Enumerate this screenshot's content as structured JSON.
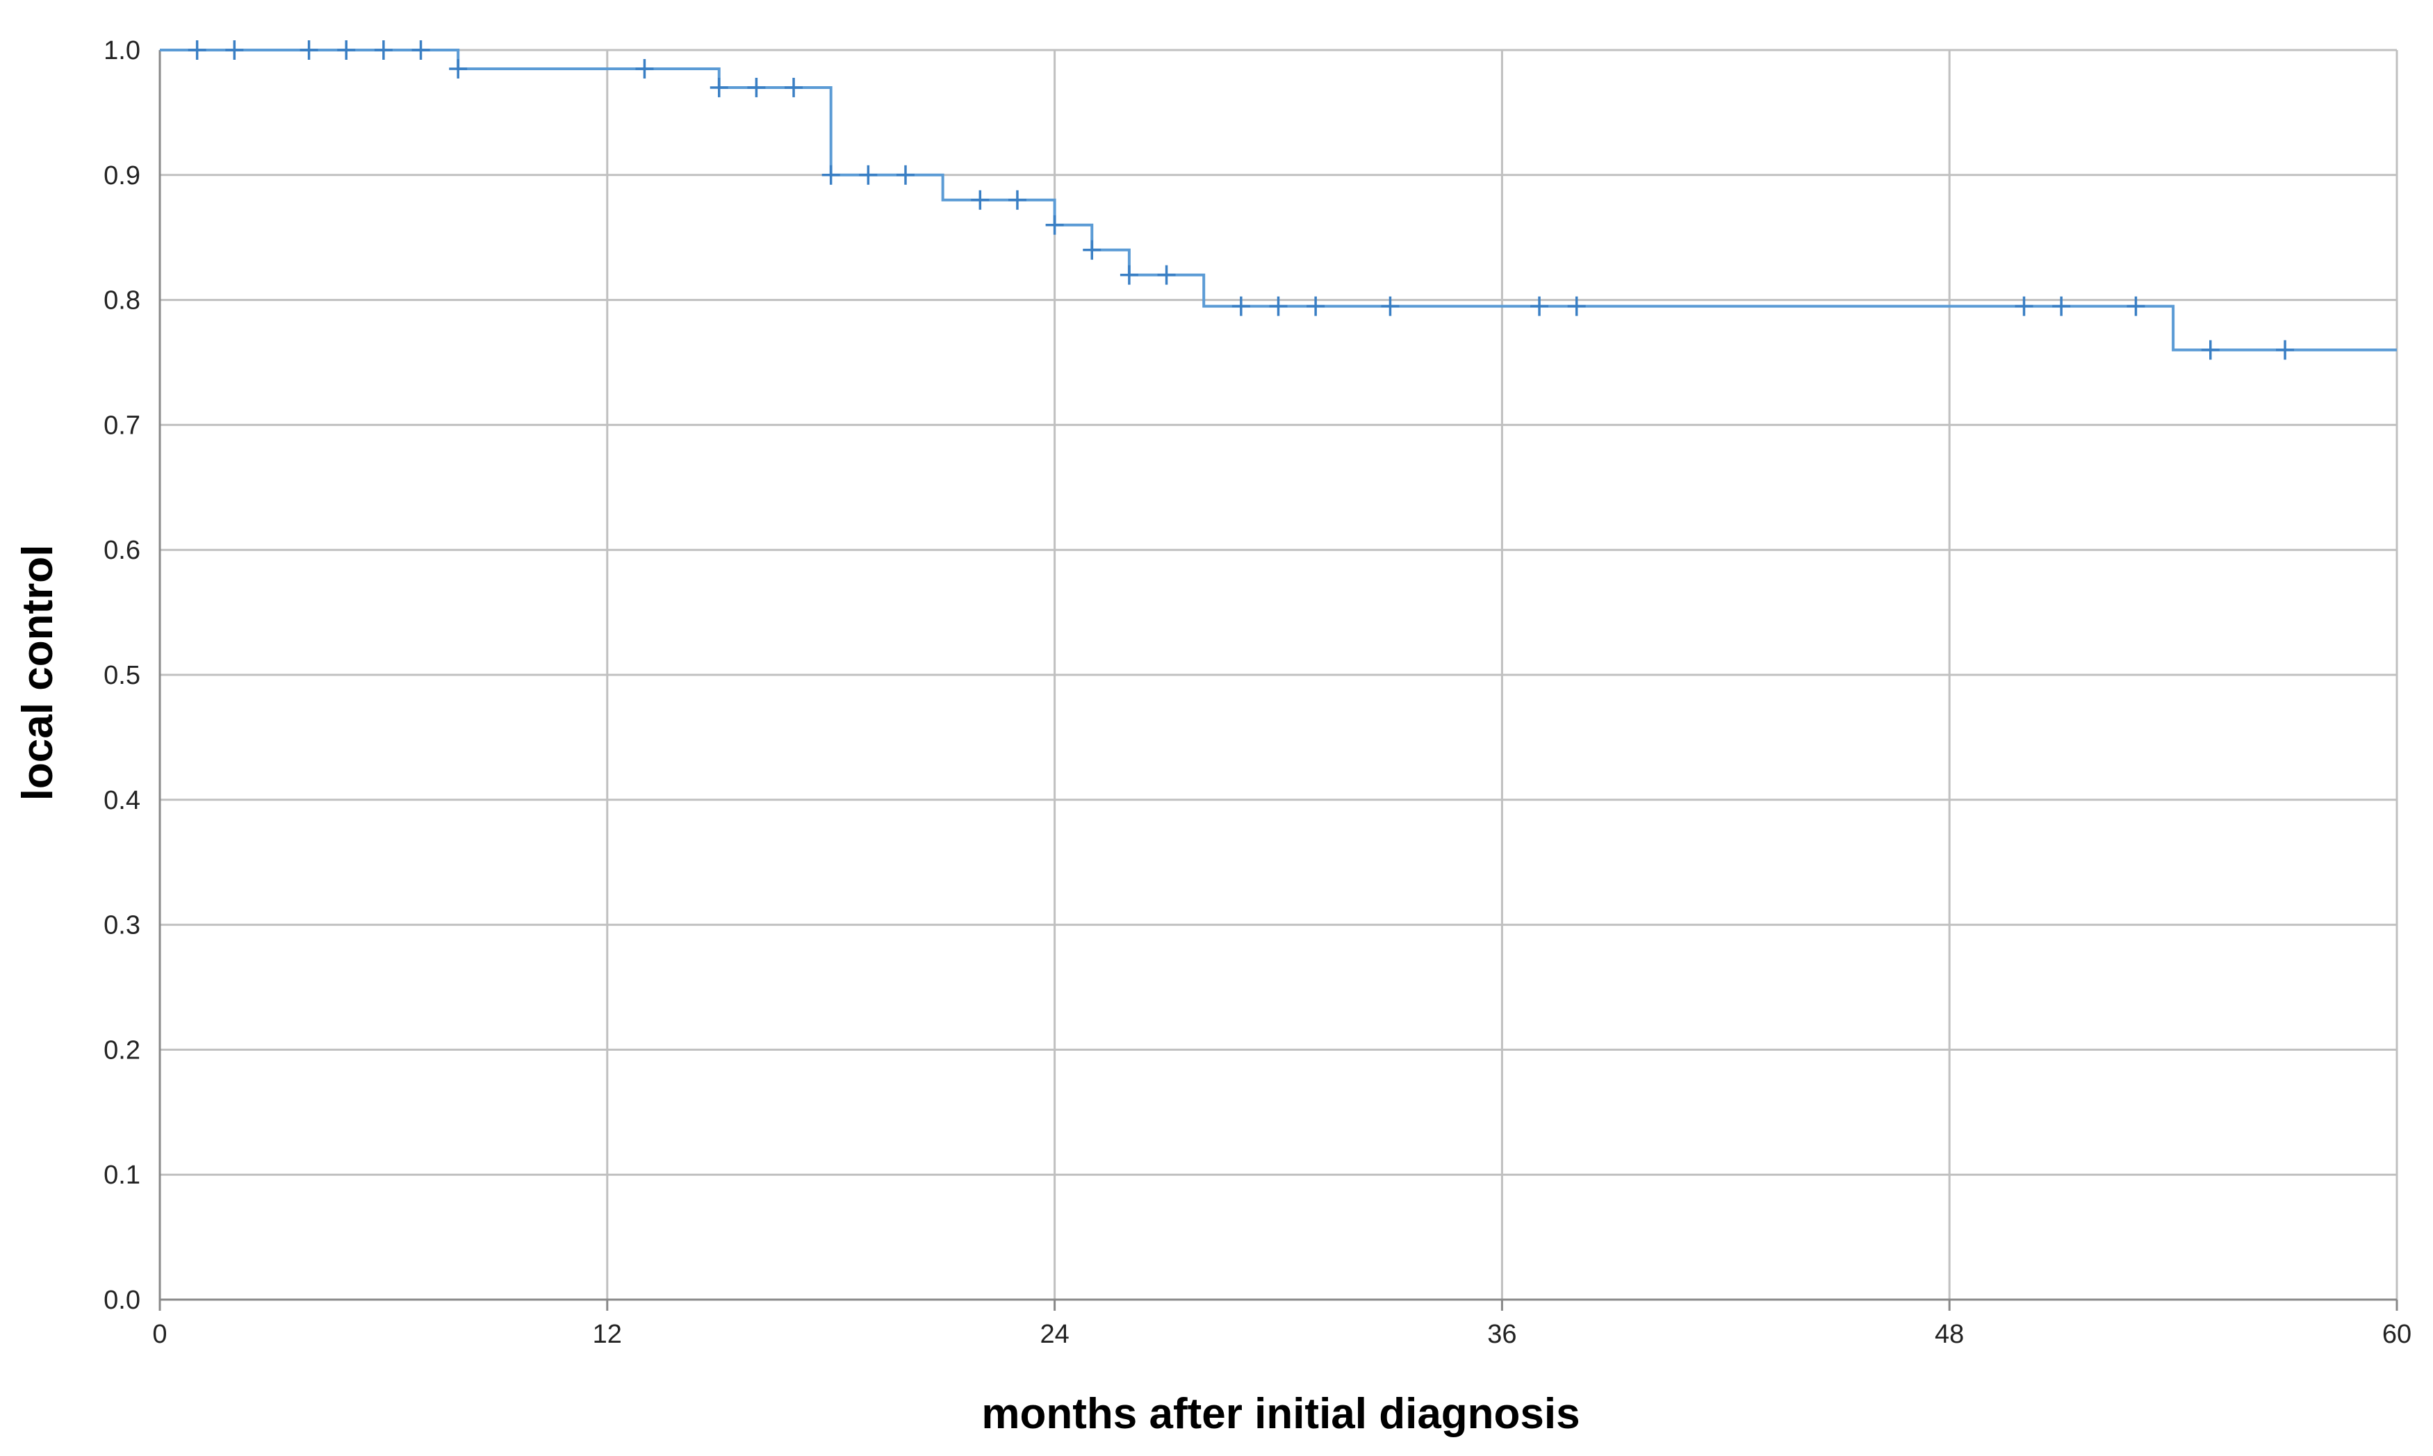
{
  "chart_data": {
    "type": "line",
    "subtype": "kaplan-meier step function with censor marks",
    "xlabel": "months after initial diagnosis",
    "ylabel": "local control",
    "xlim": [
      0,
      60
    ],
    "ylim": [
      0.0,
      1.0
    ],
    "x_ticks": [
      0,
      12,
      24,
      36,
      48,
      60
    ],
    "y_ticks": [
      0.0,
      0.1,
      0.2,
      0.3,
      0.4,
      0.5,
      0.6,
      0.7,
      0.8,
      0.9,
      1.0
    ],
    "x_tick_labels": [
      "0",
      "12",
      "24",
      "36",
      "48",
      "60"
    ],
    "y_tick_labels": [
      "0.0",
      "0.1",
      "0.2",
      "0.3",
      "0.4",
      "0.5",
      "0.6",
      "0.7",
      "0.8",
      "0.9",
      "1.0"
    ],
    "grid": true,
    "legend": "none",
    "series": [
      {
        "color": "#5b9bd5",
        "steps": [
          {
            "x": 0,
            "y": 1.0
          },
          {
            "x": 8,
            "y": 0.985
          },
          {
            "x": 15,
            "y": 0.97
          },
          {
            "x": 18,
            "y": 0.9
          },
          {
            "x": 21,
            "y": 0.88
          },
          {
            "x": 24,
            "y": 0.86
          },
          {
            "x": 25,
            "y": 0.84
          },
          {
            "x": 26,
            "y": 0.82
          },
          {
            "x": 28,
            "y": 0.795
          },
          {
            "x": 54,
            "y": 0.76
          },
          {
            "x": 60,
            "y": 0.76
          }
        ],
        "censored": [
          {
            "x": 1,
            "y": 1.0
          },
          {
            "x": 2,
            "y": 1.0
          },
          {
            "x": 4,
            "y": 1.0
          },
          {
            "x": 5,
            "y": 1.0
          },
          {
            "x": 6,
            "y": 1.0
          },
          {
            "x": 7,
            "y": 1.0
          },
          {
            "x": 8,
            "y": 0.985
          },
          {
            "x": 13,
            "y": 0.985
          },
          {
            "x": 15,
            "y": 0.97
          },
          {
            "x": 16,
            "y": 0.97
          },
          {
            "x": 17,
            "y": 0.97
          },
          {
            "x": 18,
            "y": 0.9
          },
          {
            "x": 19,
            "y": 0.9
          },
          {
            "x": 20,
            "y": 0.9
          },
          {
            "x": 22,
            "y": 0.88
          },
          {
            "x": 23,
            "y": 0.88
          },
          {
            "x": 24,
            "y": 0.86
          },
          {
            "x": 25,
            "y": 0.84
          },
          {
            "x": 26,
            "y": 0.82
          },
          {
            "x": 27,
            "y": 0.82
          },
          {
            "x": 29,
            "y": 0.795
          },
          {
            "x": 30,
            "y": 0.795
          },
          {
            "x": 31,
            "y": 0.795
          },
          {
            "x": 33,
            "y": 0.795
          },
          {
            "x": 37,
            "y": 0.795
          },
          {
            "x": 38,
            "y": 0.795
          },
          {
            "x": 50,
            "y": 0.795
          },
          {
            "x": 51,
            "y": 0.795
          },
          {
            "x": 53,
            "y": 0.795
          },
          {
            "x": 55,
            "y": 0.76
          },
          {
            "x": 57,
            "y": 0.76
          }
        ]
      }
    ]
  },
  "colors": {
    "background": "#ffffff",
    "grid": "#c0c0c0",
    "axis": "#888888",
    "series": "#5b9bd5",
    "censor": "#3a7fc4"
  }
}
